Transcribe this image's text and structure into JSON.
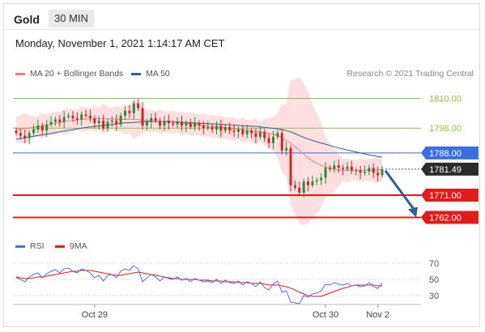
{
  "header": {
    "symbol": "Gold",
    "timeframe": "30 MIN",
    "datetime": "Monday, November 1, 2021 1:14:17 AM CET"
  },
  "legend_main": [
    {
      "label": "MA 20 + Bollinger Bands",
      "color": "#f08080"
    },
    {
      "label": "MA 50",
      "color": "#2f5f95"
    }
  ],
  "legend_rsi": [
    {
      "label": "RSI",
      "color": "#4a73d8"
    },
    {
      "label": "9MA",
      "color": "#e21b1b"
    }
  ],
  "research": "Research © 2021 Trading Central",
  "colors": {
    "up_candle": "#2e8b3a",
    "down_candle": "#d42424",
    "bollinger_fill": "#fbd9dc",
    "ma20": "#f08080",
    "ma50": "#2f5f95",
    "resistance": "#8bc34a",
    "pivot_blue": "#3b6fe0",
    "support": "#e21b1b",
    "current": "#2b2b2b"
  },
  "chart_data": [
    {
      "type": "candlestick",
      "title": "",
      "y_range": [
        1755,
        1817
      ],
      "x_tick_labels": [
        "Oct 29",
        "Oct 30",
        "Nov 2"
      ],
      "levels": [
        {
          "value": 1810.0,
          "label": "1810.00",
          "kind": "resistance"
        },
        {
          "value": 1798.0,
          "label": "1798.00",
          "kind": "resistance"
        },
        {
          "value": 1788.0,
          "label": "1788.00",
          "kind": "pivot"
        },
        {
          "value": 1781.49,
          "label": "1781.49",
          "kind": "current"
        },
        {
          "value": 1771.0,
          "label": "1771.00",
          "kind": "support"
        },
        {
          "value": 1762.0,
          "label": "1762.00",
          "kind": "support"
        }
      ],
      "closes": [
        1796.0,
        1795.0,
        1794.0,
        1796.0,
        1797.5,
        1799.0,
        1797.0,
        1799.5,
        1800.5,
        1801.5,
        1800.5,
        1802.5,
        1803.0,
        1802.0,
        1801.5,
        1803.5,
        1803.0,
        1802.0,
        1800.0,
        1801.0,
        1798.0,
        1800.5,
        1801.0,
        1799.5,
        1803.0,
        1805.0,
        1804.0,
        1808.0,
        1806.0,
        1799.0,
        1800.5,
        1802.0,
        1801.0,
        1799.0,
        1801.0,
        1800.0,
        1799.5,
        1800.5,
        1799.0,
        1800.0,
        1798.5,
        1800.0,
        1799.0,
        1798.0,
        1798.5,
        1797.5,
        1799.0,
        1797.0,
        1798.5,
        1797.0,
        1796.5,
        1797.5,
        1795.5,
        1797.0,
        1796.0,
        1794.5,
        1796.5,
        1794.0,
        1792.0,
        1794.5,
        1796.0,
        1789.0,
        1790.0,
        1775.0,
        1774.0,
        1772.0,
        1776.5,
        1775.0,
        1776.5,
        1777.0,
        1778.0,
        1782.0,
        1781.5,
        1783.0,
        1782.0,
        1781.5,
        1782.5,
        1781.0,
        1781.0,
        1780.0,
        1780.5,
        1782.0,
        1780.0,
        1779.0,
        1781.49
      ],
      "ma20": [
        1797.5,
        1797.6,
        1797.8,
        1798.0,
        1798.3,
        1798.6,
        1798.9,
        1799.2,
        1799.6,
        1800.0,
        1800.3,
        1800.6,
        1800.9,
        1801.1,
        1801.3,
        1801.5,
        1801.6,
        1801.7,
        1801.8,
        1801.8,
        1801.8,
        1801.8,
        1801.7,
        1801.6,
        1801.5,
        1801.5,
        1801.5,
        1801.5,
        1801.4,
        1801.2,
        1801.0,
        1800.9,
        1800.8,
        1800.7,
        1800.6,
        1800.5,
        1800.4,
        1800.3,
        1800.1,
        1799.9,
        1799.7,
        1799.5,
        1799.3,
        1799.1,
        1798.9,
        1798.7,
        1798.5,
        1798.3,
        1798.1,
        1797.9,
        1797.7,
        1797.5,
        1797.3,
        1797.1,
        1796.9,
        1796.7,
        1796.5,
        1796.3,
        1796.0,
        1795.6,
        1795.0,
        1794.0,
        1793.0,
        1792.0,
        1790.5,
        1789.0,
        1787.5,
        1786.0,
        1784.8,
        1783.8,
        1783.0,
        1782.3,
        1781.8,
        1781.4,
        1781.1,
        1781.0,
        1781.0,
        1781.0,
        1781.0,
        1781.0,
        1781.0,
        1781.1,
        1781.1,
        1781.2,
        1781.3
      ],
      "ma50": [
        1793.5,
        1793.8,
        1794.1,
        1794.4,
        1794.7,
        1795.0,
        1795.3,
        1795.6,
        1795.9,
        1796.2,
        1796.5,
        1796.8,
        1797.1,
        1797.4,
        1797.7,
        1798.0,
        1798.3,
        1798.5,
        1798.7,
        1798.9,
        1799.1,
        1799.3,
        1799.5,
        1799.7,
        1799.9,
        1800.1,
        1800.2,
        1800.3,
        1800.4,
        1800.5,
        1800.6,
        1800.7,
        1800.7,
        1800.7,
        1800.7,
        1800.7,
        1800.6,
        1800.5,
        1800.4,
        1800.3,
        1800.2,
        1800.1,
        1800.0,
        1799.9,
        1799.8,
        1799.7,
        1799.6,
        1799.5,
        1799.4,
        1799.3,
        1799.2,
        1799.1,
        1799.0,
        1798.9,
        1798.8,
        1798.7,
        1798.5,
        1798.3,
        1798.1,
        1797.9,
        1797.7,
        1797.4,
        1797.0,
        1796.5,
        1795.8,
        1795.0,
        1794.3,
        1793.6,
        1793.0,
        1792.5,
        1792.0,
        1791.5,
        1791.0,
        1790.5,
        1790.0,
        1789.6,
        1789.2,
        1788.8,
        1788.4,
        1788.0,
        1787.6,
        1787.2,
        1786.9,
        1786.6,
        1786.3
      ]
    },
    {
      "type": "line",
      "title": "RSI",
      "y_range": [
        20,
        80
      ],
      "y_ticks": [
        70,
        50,
        30
      ],
      "series": [
        {
          "name": "RSI",
          "values": [
            52,
            50,
            47,
            53,
            56,
            58,
            52,
            57,
            60,
            62,
            58,
            63,
            64,
            60,
            58,
            63,
            61,
            58,
            52,
            55,
            48,
            55,
            56,
            52,
            60,
            63,
            61,
            67,
            63,
            47,
            52,
            56,
            53,
            48,
            53,
            51,
            50,
            53,
            49,
            51,
            47,
            51,
            49,
            47,
            48,
            46,
            50,
            45,
            49,
            46,
            45,
            48,
            43,
            47,
            45,
            41,
            47,
            40,
            37,
            44,
            48,
            34,
            36,
            22,
            21,
            20,
            30,
            28,
            32,
            33,
            36,
            44,
            43,
            46,
            44,
            43,
            45,
            42,
            43,
            41,
            42,
            46,
            41,
            39,
            45
          ]
        },
        {
          "name": "9MA",
          "values": [
            53,
            52,
            51,
            51,
            52,
            53,
            53,
            54,
            55,
            56,
            57,
            58,
            59,
            60,
            60,
            61,
            61,
            61,
            60,
            59,
            58,
            57,
            56,
            55,
            55,
            56,
            57,
            58,
            59,
            58,
            57,
            56,
            55,
            54,
            53,
            52,
            51,
            51,
            50,
            50,
            50,
            50,
            49,
            49,
            49,
            48,
            48,
            48,
            47,
            47,
            47,
            46,
            46,
            46,
            45,
            45,
            45,
            44,
            43,
            43,
            43,
            42,
            41,
            39,
            37,
            34,
            32,
            30,
            29,
            29,
            29,
            31,
            33,
            35,
            37,
            39,
            40,
            42,
            43,
            43,
            43,
            43,
            43,
            42,
            42
          ]
        }
      ]
    }
  ]
}
